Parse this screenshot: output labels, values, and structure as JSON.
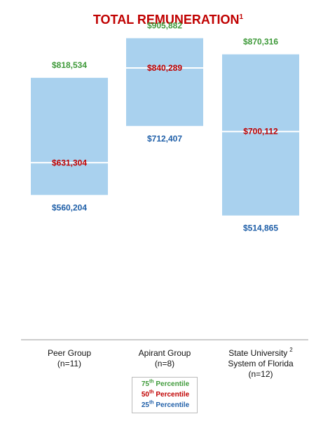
{
  "chart_data": {
    "type": "floating-range-bar",
    "title": "TOTAL REMUNERATION",
    "title_footnote": "1",
    "title_color": "#c00000",
    "ylim": [
      400000,
      950000
    ],
    "categories": [
      {
        "lines": [
          "Peer Group",
          "(n=11)"
        ],
        "sup": ""
      },
      {
        "lines": [
          "Apirant Group",
          "(n=8)"
        ],
        "sup": ""
      },
      {
        "lines": [
          "State University",
          "System of Florida",
          "(n=12)"
        ],
        "sup": "2"
      }
    ],
    "series": [
      {
        "name": "75th Percentile",
        "color": "#3f9a3a",
        "values": [
          818534,
          905882,
          870316
        ],
        "labels": [
          "$818,534",
          "$905,882",
          "$870,316"
        ]
      },
      {
        "name": "50th Percentile",
        "color": "#c00000",
        "values": [
          631304,
          840289,
          700112
        ],
        "labels": [
          "$631,304",
          "$840,289",
          "$700,112"
        ]
      },
      {
        "name": "25th Percentile",
        "color": "#1f5fa8",
        "values": [
          560204,
          712407,
          514865
        ],
        "labels": [
          "$560,204",
          "$712,407",
          "$514,865"
        ]
      }
    ],
    "bar_color": "#a9d1ee",
    "median_line_color": "#ffffff",
    "axis_color": "#999999",
    "legend": {
      "placement": "bottom-center",
      "items": [
        {
          "ordinal": "75",
          "suffix": "th",
          "text": "Percentile",
          "color": "#3f9a3a"
        },
        {
          "ordinal": "50",
          "suffix": "th",
          "text": "Percentile",
          "color": "#c00000"
        },
        {
          "ordinal": "25",
          "suffix": "th",
          "text": "Percentile",
          "color": "#1f5fa8"
        }
      ]
    }
  }
}
